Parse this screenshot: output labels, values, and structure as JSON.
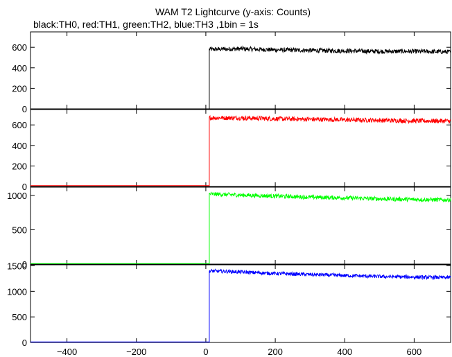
{
  "figure": {
    "title": "WAM T2 Lightcurve (y-axis: Counts)",
    "subtitle": "black:TH0, red:TH1, green:TH2, blue:TH3 ,1bin = 1s"
  },
  "chart_data": [
    {
      "type": "line",
      "title": "",
      "xlabel": "",
      "ylabel": "",
      "xlim": [
        -505,
        705
      ],
      "ylim": [
        0,
        750
      ],
      "yticks": [
        "0",
        "200",
        "400",
        "600"
      ],
      "xticks": [],
      "grid": false,
      "series": [
        {
          "name": "TH0",
          "color": "#000000",
          "pre_level": 0,
          "step_x": 10,
          "segments": [
            [
              10,
              580
            ],
            [
              100,
              585
            ],
            [
              200,
              575
            ],
            [
              300,
              570
            ],
            [
              400,
              565
            ],
            [
              500,
              560
            ],
            [
              600,
              560
            ],
            [
              700,
              555
            ]
          ],
          "noise": 22
        }
      ]
    },
    {
      "type": "line",
      "title": "",
      "xlabel": "",
      "ylabel": "",
      "xlim": [
        -505,
        705
      ],
      "ylim": [
        0,
        750
      ],
      "yticks": [
        "0",
        "200",
        "400",
        "600"
      ],
      "xticks": [],
      "grid": false,
      "series": [
        {
          "name": "TH1",
          "color": "#ff0000",
          "pre_level": 8,
          "step_x": 10,
          "segments": [
            [
              10,
              670
            ],
            [
              100,
              668
            ],
            [
              200,
              660
            ],
            [
              300,
              655
            ],
            [
              400,
              650
            ],
            [
              500,
              645
            ],
            [
              600,
              640
            ],
            [
              700,
              638
            ]
          ],
          "noise": 22
        }
      ]
    },
    {
      "type": "line",
      "title": "",
      "xlabel": "",
      "ylabel": "",
      "xlim": [
        -505,
        705
      ],
      "ylim": [
        0,
        1120
      ],
      "yticks": [
        "0",
        "500",
        "1000"
      ],
      "xticks": [],
      "grid": false,
      "series": [
        {
          "name": "TH2",
          "color": "#00ff00",
          "pre_level": 8,
          "step_x": 10,
          "segments": [
            [
              10,
              1020
            ],
            [
              100,
              1005
            ],
            [
              200,
              990
            ],
            [
              300,
              975
            ],
            [
              400,
              965
            ],
            [
              500,
              950
            ],
            [
              600,
              940
            ],
            [
              700,
              935
            ]
          ],
          "noise": 30
        }
      ]
    },
    {
      "type": "line",
      "title": "",
      "xlabel": "",
      "ylabel": "",
      "xlim": [
        -505,
        705
      ],
      "ylim": [
        0,
        1520
      ],
      "yticks": [
        "0",
        "500",
        "1000",
        "1500"
      ],
      "xticks": [
        "−400",
        "−200",
        "0",
        "200",
        "400",
        "600"
      ],
      "grid": false,
      "series": [
        {
          "name": "TH3",
          "color": "#0000ff",
          "pre_level": 10,
          "step_x": 10,
          "segments": [
            [
              10,
              1400
            ],
            [
              100,
              1380
            ],
            [
              200,
              1350
            ],
            [
              300,
              1330
            ],
            [
              400,
              1310
            ],
            [
              500,
              1290
            ],
            [
              600,
              1280
            ],
            [
              700,
              1270
            ]
          ],
          "noise": 35
        }
      ]
    }
  ],
  "xtick_values": [
    -400,
    -200,
    0,
    200,
    400,
    600
  ],
  "ytick_values": [
    [
      0,
      200,
      400,
      600
    ],
    [
      0,
      200,
      400,
      600
    ],
    [
      0,
      500,
      1000
    ],
    [
      0,
      500,
      1000,
      1500
    ]
  ]
}
